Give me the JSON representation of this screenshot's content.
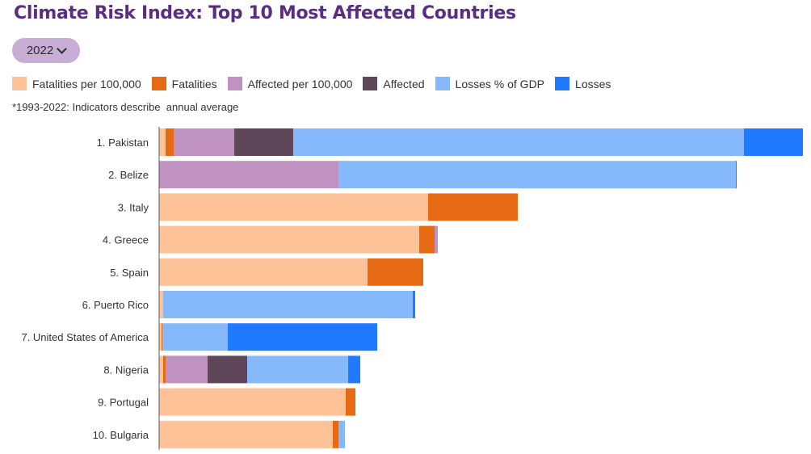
{
  "header": {
    "title": "Climate Risk Index: Top 10 Most Affected Countries",
    "year_selector": {
      "selected": "2022",
      "icon": "chevron-down-icon"
    }
  },
  "note": "*1993-2022: Indicators describe  annual average",
  "colors": {
    "fatalities_per_100k": "#fdc298",
    "fatalities": "#e66a14",
    "affected_per_100k": "#c092c2",
    "affected": "#5e4758",
    "losses_gdp": "#86b8fc",
    "losses": "#1f7aff"
  },
  "chart_data": {
    "type": "bar",
    "orientation": "horizontal",
    "stacked": true,
    "x_axis_shown": false,
    "grid": false,
    "legend_position": "top-left",
    "categories": [
      "1. Pakistan",
      "2. Belize",
      "3. Italy",
      "4. Greece",
      "5. Spain",
      "6. Puerto Rico",
      "7. United States of America",
      "8. Nigeria",
      "9. Portugal",
      "10. Bulgaria"
    ],
    "series": [
      {
        "name": "Fatalities per 100,000",
        "key": "fatalities_per_100k",
        "values": [
          8,
          0,
          333,
          322,
          258,
          5,
          3,
          5,
          231,
          215
        ]
      },
      {
        "name": "Fatalities",
        "key": "fatalities",
        "values": [
          10,
          0,
          111,
          19,
          69,
          0,
          1,
          3,
          12,
          7
        ]
      },
      {
        "name": "Affected per 100,000",
        "key": "affected_per_100k",
        "values": [
          75,
          222,
          0,
          4,
          0,
          0,
          0,
          52,
          0,
          0
        ]
      },
      {
        "name": "Affected",
        "key": "affected",
        "values": [
          73,
          0,
          0,
          0,
          0,
          0,
          0,
          49,
          0,
          0
        ]
      },
      {
        "name": "Losses % of GDP",
        "key": "losses_gdp",
        "values": [
          558,
          492,
          0,
          0,
          0,
          309,
          81,
          125,
          0,
          8
        ]
      },
      {
        "name": "Losses",
        "key": "losses",
        "values": [
          73,
          1,
          0,
          0,
          0,
          3,
          185,
          15,
          0,
          0
        ]
      }
    ]
  }
}
